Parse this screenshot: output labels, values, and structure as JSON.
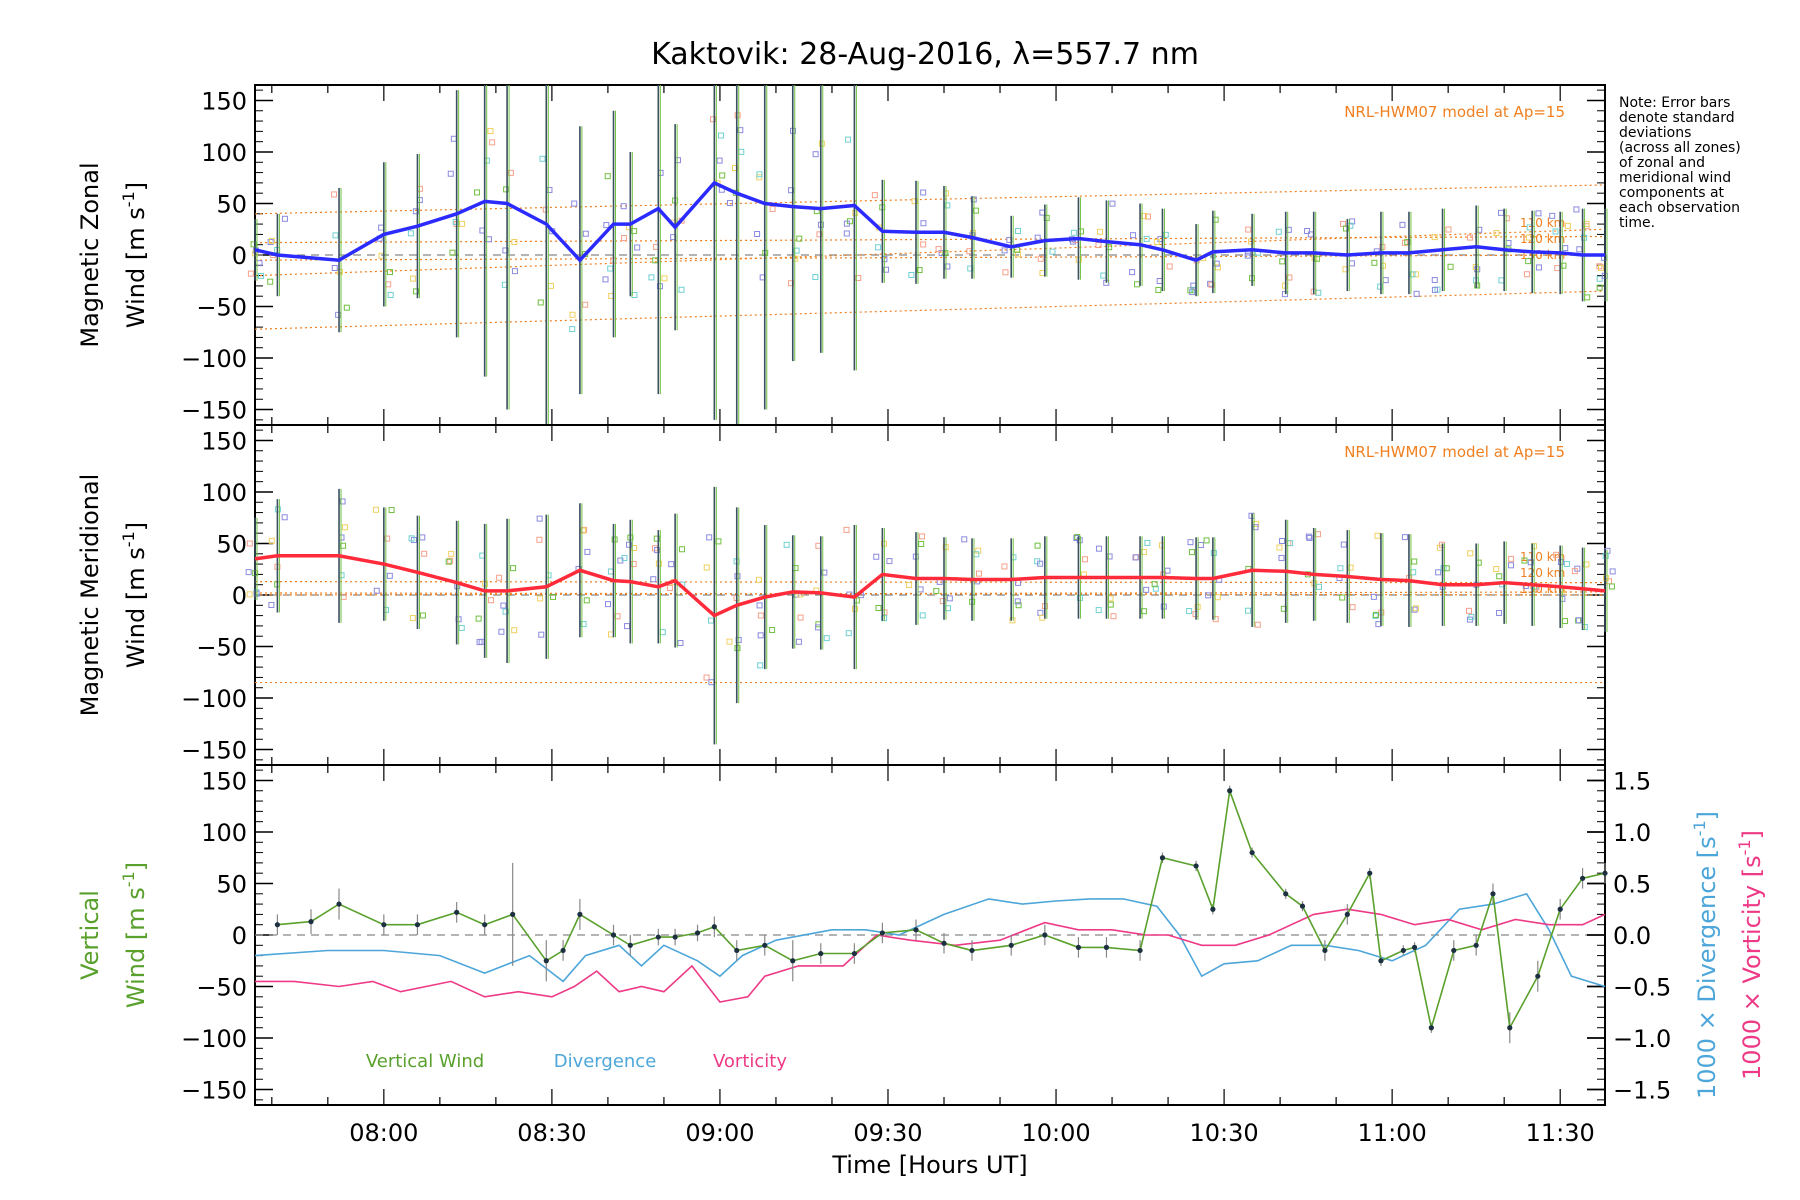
{
  "title": "Kaktovik: 28-Aug-2016, λ=557.7 nm",
  "note_lines": [
    "Note: Error bars",
    "denote standard",
    "deviations",
    "(across all zones)",
    "of zonal and",
    "meridional wind",
    "components at",
    "each observation",
    "time."
  ],
  "colors": {
    "zonal": "#2b2bff",
    "meridional": "#ff2b3a",
    "vertical": "#5aa02c",
    "divergence": "#4da6d9",
    "vorticity": "#ee3a86",
    "model": "#f08020",
    "zone_blue": "#8a8ae0",
    "zone_salmon": "#f5a08a",
    "zone_yellow": "#f0d060",
    "zone_cyan": "#70d0d0",
    "zone_green": "#70c040",
    "errbar_dark": "#3a5060",
    "errbar_gray": "#888888"
  },
  "chart_data": [
    {
      "type": "line",
      "panel": "zonal",
      "ylabel_lines": [
        "Magnetic Zonal",
        "Wind [m s^-1]"
      ],
      "ylim": [
        -165,
        165
      ],
      "yticks": [
        -150,
        -100,
        -50,
        0,
        50,
        100,
        150
      ],
      "xlim": [
        "07:37",
        "11:38"
      ],
      "model_label": "NRL-HWM07 model at Ap=15",
      "model_altitudes": [
        "110 km",
        "120 km",
        "130 km"
      ],
      "series": [
        {
          "x": [
            "07:37",
            "07:41",
            "07:52",
            "08:00",
            "08:06",
            "08:13",
            "08:18",
            "08:22",
            "08:29",
            "08:35",
            "08:41",
            "08:44",
            "08:49",
            "08:52",
            "08:59",
            "09:03",
            "09:08",
            "09:13",
            "09:18",
            "09:24",
            "09:29",
            "09:35",
            "09:40",
            "09:45",
            "09:52",
            "09:58",
            "10:04",
            "10:09",
            "10:15",
            "10:19",
            "10:25",
            "10:28",
            "10:35",
            "10:41",
            "10:46",
            "10:52",
            "10:58",
            "11:03",
            "11:09",
            "11:15",
            "11:20",
            "11:25",
            "11:30",
            "11:34",
            "11:38"
          ],
          "y": [
            5,
            0,
            -5,
            20,
            28,
            40,
            52,
            50,
            30,
            -5,
            30,
            30,
            45,
            27,
            70,
            60,
            50,
            47,
            45,
            48,
            23,
            22,
            22,
            17,
            8,
            14,
            16,
            13,
            10,
            5,
            -5,
            3,
            5,
            2,
            2,
            0,
            2,
            2,
            5,
            8,
            5,
            3,
            2,
            0,
            0
          ],
          "err": [
            30,
            40,
            70,
            70,
            70,
            120,
            170,
            200,
            200,
            130,
            110,
            70,
            180,
            100,
            230,
            250,
            200,
            150,
            140,
            160,
            50,
            50,
            45,
            40,
            30,
            35,
            40,
            40,
            40,
            40,
            35,
            40,
            35,
            40,
            40,
            35,
            40,
            40,
            40,
            40,
            40,
            40,
            40,
            45,
            45
          ]
        }
      ],
      "model_lines": [
        {
          "x": [
            "07:37",
            "11:38"
          ],
          "y": [
            -72,
            -35
          ]
        },
        {
          "x": [
            "07:37",
            "11:38"
          ],
          "y": [
            -20,
            25
          ]
        },
        {
          "x": [
            "07:37",
            "11:38"
          ],
          "y": [
            -5,
            0
          ]
        },
        {
          "x": [
            "07:37",
            "11:38"
          ],
          "y": [
            12,
            18
          ]
        },
        {
          "x": [
            "07:37",
            "11:38"
          ],
          "y": [
            40,
            68
          ]
        }
      ]
    },
    {
      "type": "line",
      "panel": "meridional",
      "ylabel_lines": [
        "Magnetic Meridional",
        "Wind [m s^-1]"
      ],
      "ylim": [
        -165,
        165
      ],
      "yticks": [
        -150,
        -100,
        -50,
        0,
        50,
        100,
        150
      ],
      "xlim": [
        "07:37",
        "11:38"
      ],
      "model_label": "NRL-HWM07 model at Ap=15",
      "model_altitudes": [
        "110 km",
        "120 km",
        "130 km"
      ],
      "series": [
        {
          "x": [
            "07:37",
            "07:41",
            "07:52",
            "08:00",
            "08:06",
            "08:13",
            "08:18",
            "08:22",
            "08:29",
            "08:35",
            "08:41",
            "08:44",
            "08:49",
            "08:52",
            "08:59",
            "09:03",
            "09:08",
            "09:13",
            "09:18",
            "09:24",
            "09:29",
            "09:35",
            "09:40",
            "09:45",
            "09:52",
            "09:58",
            "10:04",
            "10:09",
            "10:15",
            "10:19",
            "10:25",
            "10:28",
            "10:35",
            "10:41",
            "10:46",
            "10:52",
            "10:58",
            "11:03",
            "11:09",
            "11:15",
            "11:20",
            "11:25",
            "11:30",
            "11:34",
            "11:38"
          ],
          "y": [
            35,
            38,
            38,
            30,
            22,
            12,
            4,
            4,
            8,
            24,
            14,
            13,
            8,
            14,
            -20,
            -10,
            -2,
            3,
            2,
            -2,
            20,
            16,
            16,
            15,
            15,
            17,
            17,
            17,
            17,
            17,
            16,
            16,
            24,
            23,
            20,
            18,
            15,
            14,
            10,
            10,
            12,
            10,
            8,
            6,
            4
          ],
          "err": [
            40,
            55,
            65,
            55,
            55,
            60,
            65,
            70,
            70,
            65,
            55,
            60,
            55,
            65,
            125,
            95,
            70,
            55,
            55,
            70,
            45,
            45,
            40,
            40,
            40,
            40,
            40,
            40,
            40,
            40,
            40,
            40,
            55,
            50,
            45,
            45,
            45,
            45,
            40,
            40,
            40,
            40,
            40,
            40,
            40
          ]
        }
      ],
      "model_lines": [
        {
          "x": [
            "07:37",
            "11:38"
          ],
          "y": [
            -85,
            -85
          ]
        },
        {
          "x": [
            "07:37",
            "11:38"
          ],
          "y": [
            0,
            3
          ]
        },
        {
          "x": [
            "07:37",
            "11:38"
          ],
          "y": [
            2,
            0
          ]
        },
        {
          "x": [
            "07:37",
            "11:38"
          ],
          "y": [
            13,
            12
          ]
        }
      ]
    },
    {
      "type": "line",
      "panel": "vertical",
      "ylabel_lines": [
        "Vertical",
        "Wind [m s^-1]"
      ],
      "ylim": [
        -165,
        165
      ],
      "yticks": [
        -150,
        -100,
        -50,
        0,
        50,
        100,
        150
      ],
      "y2label_div": "1000 × Divergence [s^-1]",
      "y2label_vort": "1000 × Vorticity [s^-1]",
      "y2lim": [
        -1.65,
        1.65
      ],
      "y2ticks": [
        -1.5,
        -1.0,
        -0.5,
        0.0,
        0.5,
        1.0,
        1.5
      ],
      "xlabel": "Time [Hours UT]",
      "xticks": [
        "08:00",
        "08:30",
        "09:00",
        "09:30",
        "10:00",
        "10:30",
        "11:00",
        "11:30"
      ],
      "xlim": [
        "07:37",
        "11:38"
      ],
      "legend": [
        "Vertical Wind",
        "Divergence",
        "Vorticity"
      ],
      "series": [
        {
          "name": "Vertical Wind",
          "x": [
            "07:41",
            "07:47",
            "07:52",
            "08:00",
            "08:06",
            "08:13",
            "08:18",
            "08:23",
            "08:29",
            "08:32",
            "08:35",
            "08:41",
            "08:44",
            "08:49",
            "08:52",
            "08:56",
            "08:59",
            "09:03",
            "09:08",
            "09:13",
            "09:18",
            "09:24",
            "09:29",
            "09:35",
            "09:40",
            "09:45",
            "09:52",
            "09:58",
            "10:04",
            "10:09",
            "10:15",
            "10:19",
            "10:25",
            "10:28",
            "10:31",
            "10:35",
            "10:41",
            "10:44",
            "10:48",
            "10:52",
            "10:56",
            "10:58",
            "11:02",
            "11:04",
            "11:07",
            "11:11",
            "11:15",
            "11:18",
            "11:21",
            "11:26",
            "11:30",
            "11:34",
            "11:38"
          ],
          "y": [
            10,
            13,
            30,
            10,
            10,
            22,
            10,
            20,
            -25,
            -15,
            20,
            0,
            -10,
            -2,
            -2,
            2,
            8,
            -15,
            -10,
            -25,
            -18,
            -18,
            2,
            5,
            -8,
            -15,
            -10,
            0,
            -12,
            -12,
            -15,
            75,
            67,
            25,
            140,
            80,
            40,
            28,
            -15,
            20,
            60,
            -25,
            -15,
            -12,
            -90,
            -15,
            -10,
            40,
            -90,
            -40,
            25,
            55,
            60
          ],
          "err": [
            10,
            12,
            15,
            10,
            10,
            10,
            10,
            50,
            20,
            10,
            15,
            10,
            10,
            8,
            8,
            8,
            10,
            10,
            10,
            20,
            10,
            10,
            10,
            10,
            10,
            10,
            10,
            10,
            10,
            10,
            10,
            5,
            5,
            5,
            5,
            5,
            5,
            5,
            10,
            10,
            5,
            5,
            5,
            5,
            5,
            10,
            10,
            10,
            15,
            15,
            10,
            10,
            10
          ]
        },
        {
          "name": "Divergence",
          "x": [
            "07:37",
            "07:50",
            "08:00",
            "08:10",
            "08:18",
            "08:26",
            "08:32",
            "08:36",
            "08:42",
            "08:46",
            "08:50",
            "08:56",
            "09:00",
            "09:04",
            "09:10",
            "09:20",
            "09:26",
            "09:32",
            "09:40",
            "09:48",
            "09:54",
            "10:00",
            "10:06",
            "10:12",
            "10:18",
            "10:22",
            "10:26",
            "10:30",
            "10:36",
            "10:42",
            "10:48",
            "10:54",
            "11:00",
            "11:06",
            "11:12",
            "11:18",
            "11:24",
            "11:28",
            "11:32",
            "11:38"
          ],
          "y": [
            -0.2,
            -0.15,
            -0.15,
            -0.2,
            -0.37,
            -0.2,
            -0.45,
            -0.2,
            -0.1,
            -0.3,
            -0.1,
            -0.25,
            -0.4,
            -0.2,
            -0.05,
            0.05,
            0.05,
            0.0,
            0.2,
            0.35,
            0.3,
            0.33,
            0.35,
            0.35,
            0.28,
            0.0,
            -0.4,
            -0.28,
            -0.25,
            -0.1,
            -0.1,
            -0.15,
            -0.25,
            -0.1,
            0.25,
            0.3,
            0.4,
            0.05,
            -0.4,
            -0.5
          ]
        },
        {
          "name": "Vorticity",
          "x": [
            "07:37",
            "07:44",
            "07:52",
            "07:58",
            "08:03",
            "08:12",
            "08:18",
            "08:24",
            "08:30",
            "08:34",
            "08:38",
            "08:42",
            "08:46",
            "08:50",
            "08:55",
            "09:00",
            "09:05",
            "09:08",
            "09:14",
            "09:22",
            "09:28",
            "09:34",
            "09:42",
            "09:50",
            "09:58",
            "10:04",
            "10:10",
            "10:16",
            "10:20",
            "10:26",
            "10:32",
            "10:38",
            "10:46",
            "10:52",
            "10:58",
            "11:04",
            "11:10",
            "11:16",
            "11:22",
            "11:28",
            "11:34",
            "11:38"
          ],
          "y": [
            -0.45,
            -0.45,
            -0.5,
            -0.45,
            -0.55,
            -0.45,
            -0.6,
            -0.55,
            -0.6,
            -0.5,
            -0.35,
            -0.55,
            -0.5,
            -0.55,
            -0.3,
            -0.65,
            -0.6,
            -0.4,
            -0.3,
            -0.3,
            0.0,
            -0.05,
            -0.1,
            -0.05,
            0.12,
            0.05,
            0.05,
            0.0,
            0.0,
            -0.1,
            -0.1,
            0.0,
            0.2,
            0.25,
            0.2,
            0.1,
            0.15,
            0.05,
            0.15,
            0.1,
            0.1,
            0.2
          ]
        }
      ]
    }
  ]
}
